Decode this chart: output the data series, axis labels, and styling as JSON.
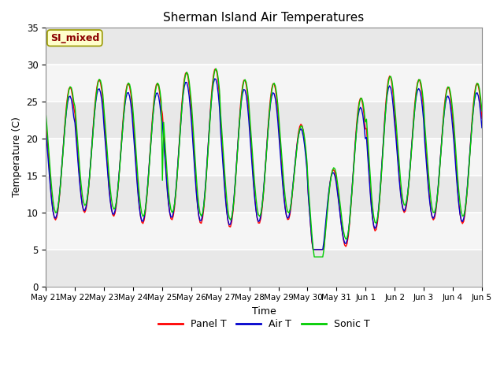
{
  "title": "Sherman Island Air Temperatures",
  "xlabel": "Time",
  "ylabel": "Temperature (C)",
  "ylim": [
    0,
    35
  ],
  "annotation_text": "SI_mixed",
  "annotation_color": "#8B0000",
  "annotation_bg": "#FFFFCC",
  "annotation_border": "#999900",
  "background_color": "#E8E8E8",
  "plot_bg_light": "#F5F5F5",
  "grid_color": "#CCCCCC",
  "x_tick_labels": [
    "May 21",
    "May 22",
    "May 23",
    "May 24",
    "May 25",
    "May 26",
    "May 27",
    "May 28",
    "May 29",
    "May 30",
    "May 31",
    "Jun 1",
    "Jun 2",
    "Jun 3",
    "Jun 4",
    "Jun 5"
  ],
  "line_colors": {
    "panel": "#FF0000",
    "air": "#0000CC",
    "sonic": "#00CC00"
  },
  "line_width": 1.0,
  "legend_items": [
    "Panel T",
    "Air T",
    "Sonic T"
  ],
  "n_points": 360
}
